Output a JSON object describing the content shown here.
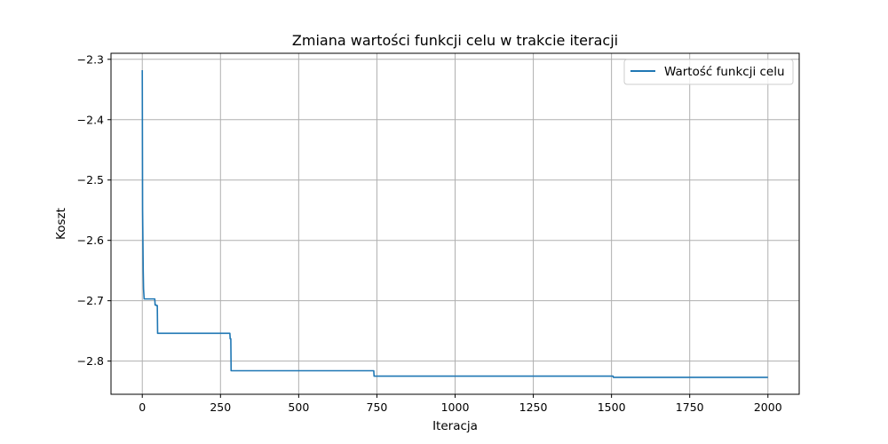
{
  "chart_data": {
    "type": "line",
    "title": "Zmiana wartości funkcji celu w trakcie iteracji",
    "xlabel": "Iteracja",
    "ylabel": "Koszt",
    "xlim": [
      -100,
      2100
    ],
    "ylim": [
      -2.855,
      -2.29
    ],
    "x_ticks": [
      0,
      250,
      500,
      750,
      1000,
      1250,
      1500,
      1750,
      2000
    ],
    "y_ticks": [
      -2.3,
      -2.4,
      -2.5,
      -2.6,
      -2.7,
      -2.8
    ],
    "x_tick_labels": [
      "0",
      "250",
      "500",
      "750",
      "1000",
      "1250",
      "1500",
      "1750",
      "2000"
    ],
    "y_tick_labels": [
      "−2.3",
      "−2.4",
      "−2.5",
      "−2.6",
      "−2.7",
      "−2.8"
    ],
    "grid": true,
    "legend_position": "upper right",
    "series": [
      {
        "name": "Wartość funkcji celu",
        "color": "#1f77b4",
        "x": [
          0,
          1,
          2,
          3,
          4,
          6,
          7,
          40,
          41,
          44,
          45,
          48,
          49,
          280,
          281,
          283,
          284,
          740,
          741,
          1505,
          1506,
          2000
        ],
        "y": [
          -2.318,
          -2.55,
          -2.6,
          -2.65,
          -2.68,
          -2.697,
          -2.697,
          -2.697,
          -2.707,
          -2.707,
          -2.708,
          -2.708,
          -2.754,
          -2.754,
          -2.763,
          -2.763,
          -2.816,
          -2.816,
          -2.825,
          -2.825,
          -2.827,
          -2.827
        ]
      }
    ]
  }
}
